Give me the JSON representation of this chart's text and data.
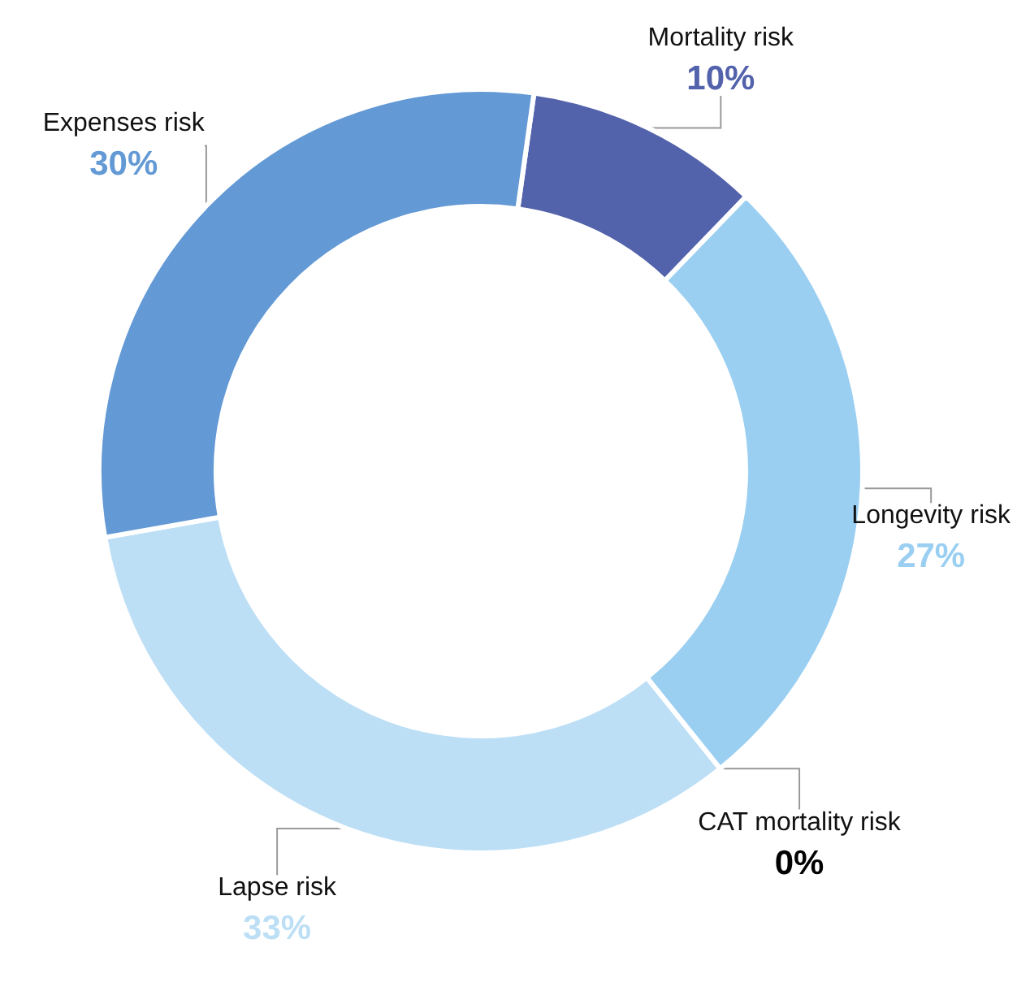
{
  "chart_data": {
    "type": "donut",
    "categories": [
      "Mortality risk",
      "Longevity risk",
      "CAT mortality risk",
      "Lapse risk",
      "Expenses risk"
    ],
    "values": [
      10,
      27,
      0,
      33,
      30
    ],
    "value_labels": [
      "10%",
      "27%",
      "0%",
      "33%",
      "30%"
    ],
    "colors": [
      "#5262ab",
      "#9acff2",
      "#000000",
      "#bddff6",
      "#6399d4"
    ]
  }
}
